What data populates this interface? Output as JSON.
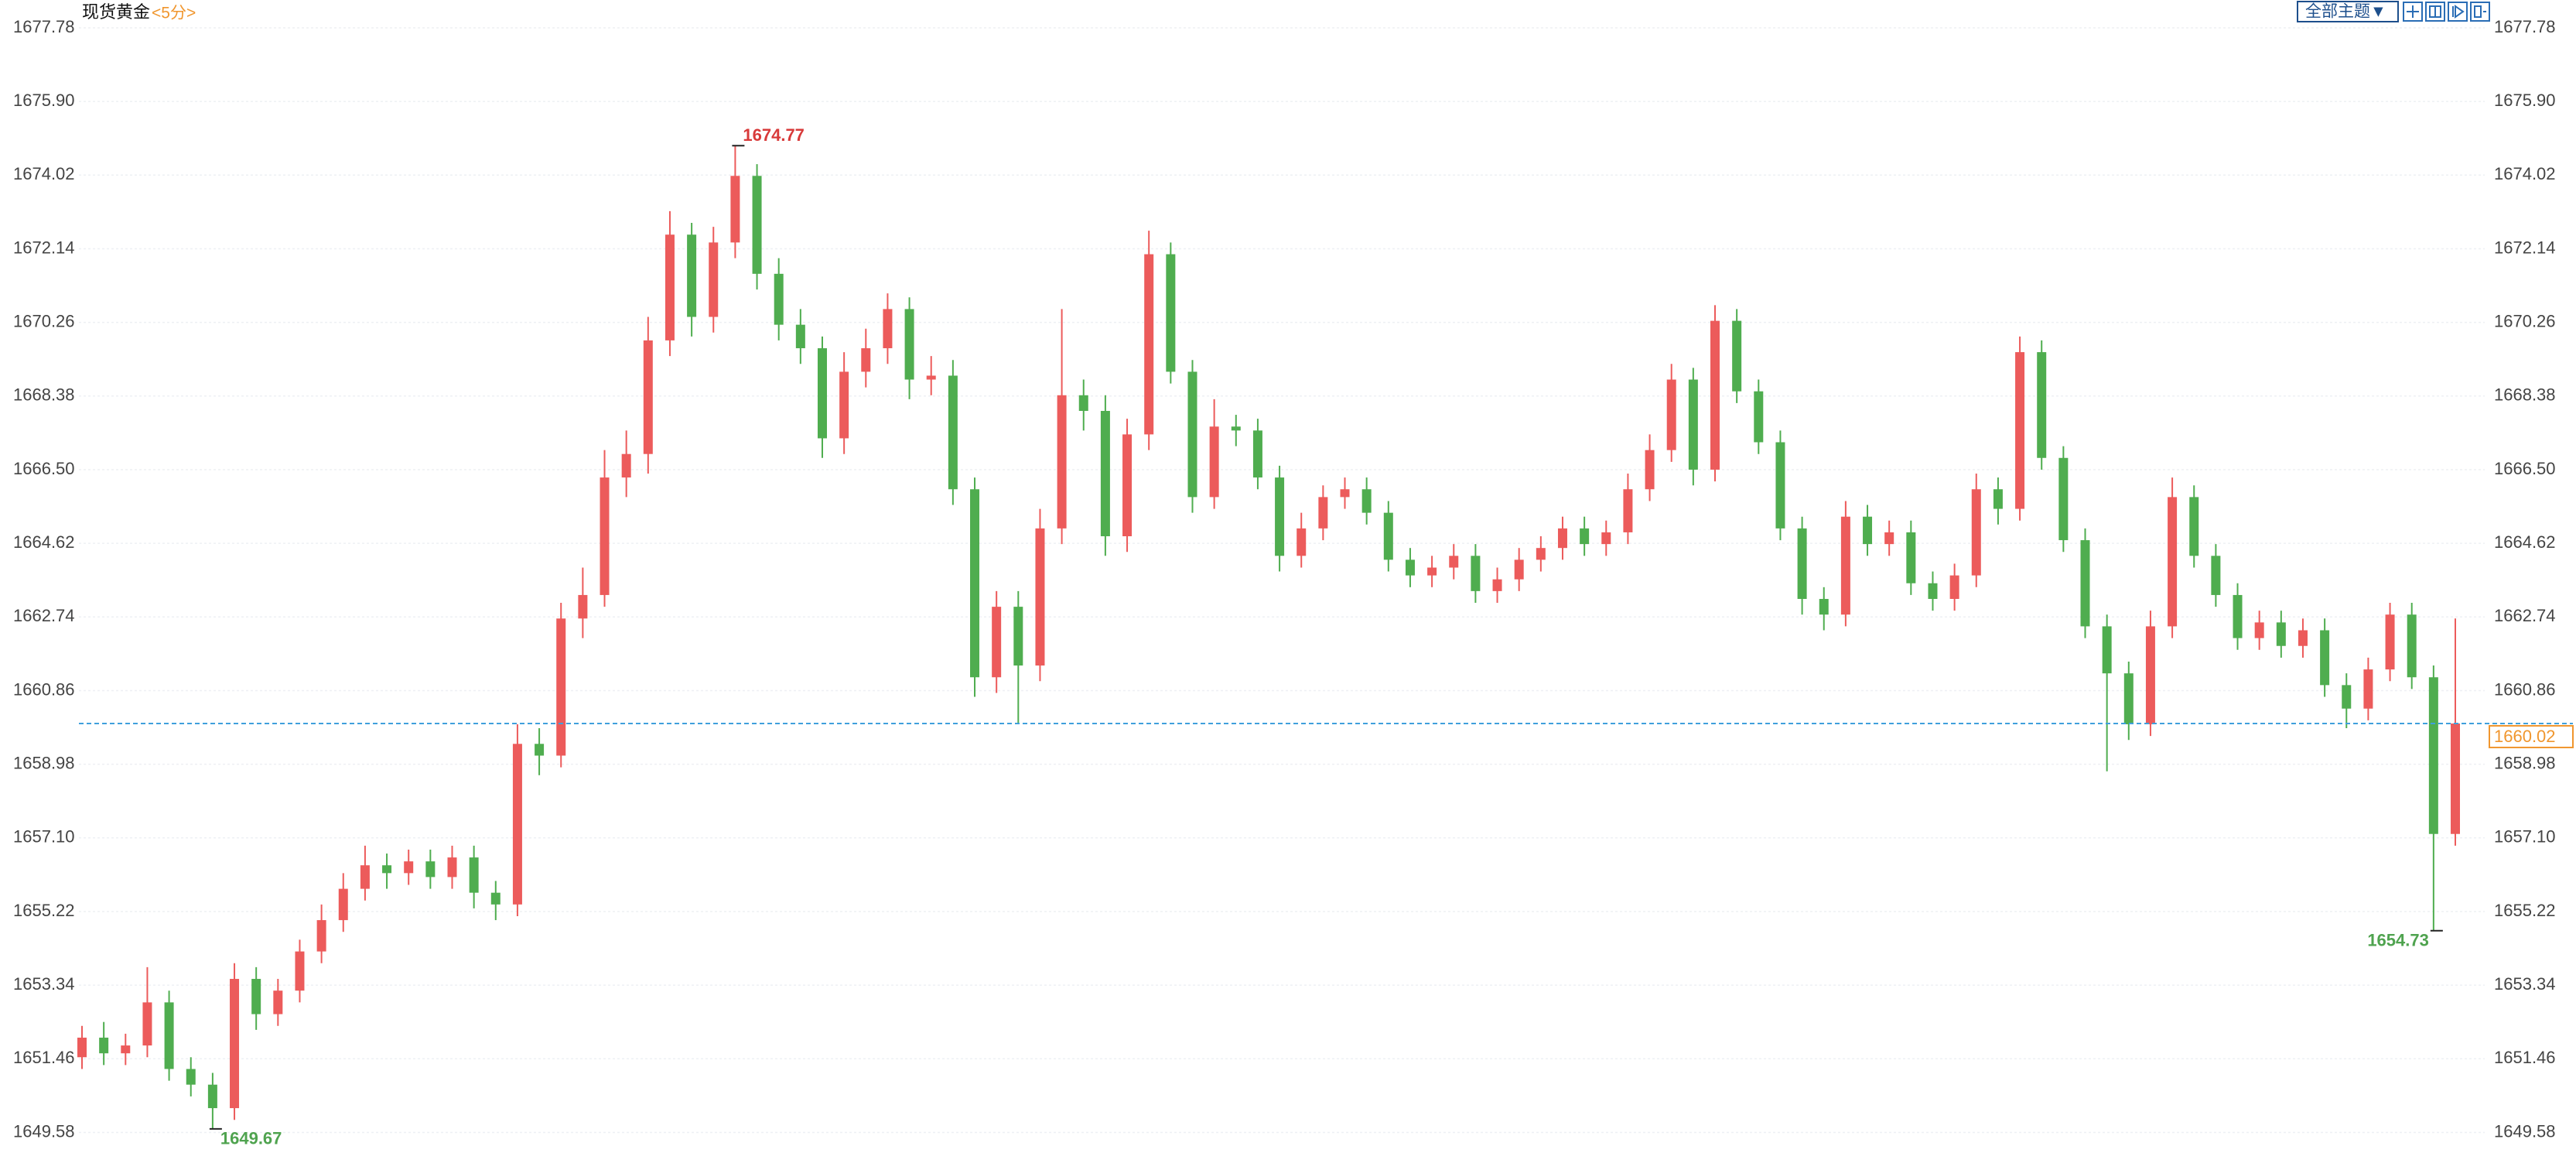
{
  "chart_data": {
    "type": "candlestick",
    "title": "现货黄金",
    "subtitle": "<5分>",
    "open": [
      1651.5,
      1652.0,
      1651.6,
      1651.8,
      1652.9,
      1651.2,
      1650.8,
      1650.2,
      1653.5,
      1652.6,
      1653.2,
      1654.2,
      1655.0,
      1655.8,
      1656.4,
      1656.2,
      1656.5,
      1656.1,
      1656.6,
      1655.7,
      1655.4,
      1659.5,
      1659.2,
      1662.7,
      1663.3,
      1666.3,
      1666.9,
      1669.8,
      1672.5,
      1670.4,
      1672.3,
      1674.0,
      1671.5,
      1670.2,
      1669.6,
      1667.3,
      1669.0,
      1669.6,
      1670.6,
      1668.8,
      1668.9,
      1666.0,
      1661.2,
      1663.0,
      1661.5,
      1665.0,
      1668.4,
      1668.0,
      1664.8,
      1667.4,
      1672.0,
      1669.0,
      1665.8,
      1667.6,
      1667.5,
      1666.3,
      1664.3,
      1665.0,
      1665.8,
      1666.0,
      1665.4,
      1664.2,
      1663.8,
      1664.0,
      1664.3,
      1663.4,
      1663.7,
      1664.2,
      1664.5,
      1665.0,
      1664.6,
      1664.9,
      1666.0,
      1667.0,
      1668.8,
      1666.5,
      1670.3,
      1668.5,
      1667.2,
      1665.0,
      1663.2,
      1662.8,
      1665.3,
      1664.6,
      1664.9,
      1663.6,
      1663.2,
      1663.8,
      1666.0,
      1665.5,
      1669.5,
      1666.8,
      1664.7,
      1662.5,
      1661.3,
      1660.0,
      1662.5,
      1665.8,
      1664.3,
      1663.3,
      1662.2,
      1662.6,
      1662.0,
      1662.4,
      1661.0,
      1660.4,
      1661.4,
      1662.8,
      1661.2,
      1657.2
    ],
    "high": [
      1652.3,
      1652.4,
      1652.1,
      1653.8,
      1653.2,
      1651.5,
      1651.1,
      1653.9,
      1653.8,
      1653.5,
      1654.5,
      1655.4,
      1656.2,
      1656.9,
      1656.7,
      1656.8,
      1656.8,
      1656.9,
      1656.9,
      1656.0,
      1660.0,
      1659.9,
      1663.1,
      1664.0,
      1667.0,
      1667.5,
      1670.4,
      1673.1,
      1672.8,
      1672.7,
      1674.77,
      1674.3,
      1671.9,
      1670.6,
      1669.9,
      1669.5,
      1670.1,
      1671.0,
      1670.9,
      1669.4,
      1669.3,
      1666.3,
      1663.4,
      1663.4,
      1665.5,
      1670.6,
      1668.8,
      1668.4,
      1667.8,
      1672.6,
      1672.3,
      1669.3,
      1668.3,
      1667.9,
      1667.8,
      1666.6,
      1665.4,
      1666.1,
      1666.3,
      1666.3,
      1665.7,
      1664.5,
      1664.3,
      1664.6,
      1664.6,
      1664.0,
      1664.5,
      1664.8,
      1665.3,
      1665.3,
      1665.2,
      1666.4,
      1667.4,
      1669.2,
      1669.1,
      1670.7,
      1670.6,
      1668.8,
      1667.5,
      1665.3,
      1663.5,
      1665.7,
      1665.6,
      1665.2,
      1665.2,
      1663.9,
      1664.1,
      1666.4,
      1666.3,
      1669.9,
      1669.8,
      1667.1,
      1665.0,
      1662.8,
      1661.6,
      1662.9,
      1666.3,
      1666.1,
      1664.6,
      1663.6,
      1662.9,
      1662.9,
      1662.7,
      1662.7,
      1661.3,
      1661.7,
      1663.1,
      1663.1,
      1661.5,
      1662.7
    ],
    "low": [
      1651.2,
      1651.3,
      1651.3,
      1651.5,
      1650.9,
      1650.5,
      1649.67,
      1649.9,
      1652.2,
      1652.3,
      1652.9,
      1653.9,
      1654.7,
      1655.5,
      1655.8,
      1655.9,
      1655.8,
      1655.8,
      1655.3,
      1655.0,
      1655.1,
      1658.7,
      1658.9,
      1662.2,
      1663.0,
      1665.8,
      1666.4,
      1669.4,
      1669.9,
      1670.0,
      1671.9,
      1671.1,
      1669.8,
      1669.2,
      1666.8,
      1666.9,
      1668.6,
      1669.2,
      1668.3,
      1668.4,
      1665.6,
      1660.7,
      1660.8,
      1660.0,
      1661.1,
      1664.6,
      1667.5,
      1664.3,
      1664.4,
      1667.0,
      1668.7,
      1665.4,
      1665.5,
      1667.1,
      1666.0,
      1663.9,
      1664.0,
      1664.7,
      1665.5,
      1665.1,
      1663.9,
      1663.5,
      1663.5,
      1663.7,
      1663.1,
      1663.1,
      1663.4,
      1663.9,
      1664.2,
      1664.3,
      1664.3,
      1664.6,
      1665.7,
      1666.7,
      1666.1,
      1666.2,
      1668.2,
      1666.9,
      1664.7,
      1662.8,
      1662.4,
      1662.5,
      1664.3,
      1664.3,
      1663.3,
      1662.9,
      1662.9,
      1663.5,
      1665.1,
      1665.2,
      1666.5,
      1664.4,
      1662.2,
      1658.8,
      1659.6,
      1659.7,
      1662.2,
      1664.0,
      1663.0,
      1661.9,
      1661.9,
      1661.7,
      1661.7,
      1660.7,
      1659.9,
      1660.1,
      1661.1,
      1660.9,
      1654.73,
      1656.9
    ],
    "close": [
      1652.0,
      1651.6,
      1651.8,
      1652.9,
      1651.2,
      1650.8,
      1650.2,
      1653.5,
      1652.6,
      1653.2,
      1654.2,
      1655.0,
      1655.8,
      1656.4,
      1656.2,
      1656.5,
      1656.1,
      1656.6,
      1655.7,
      1655.4,
      1659.5,
      1659.2,
      1662.7,
      1663.3,
      1666.3,
      1666.9,
      1669.8,
      1672.5,
      1670.4,
      1672.3,
      1674.0,
      1671.5,
      1670.2,
      1669.6,
      1667.3,
      1669.0,
      1669.6,
      1670.6,
      1668.8,
      1668.9,
      1666.0,
      1661.2,
      1663.0,
      1661.5,
      1665.0,
      1668.4,
      1668.0,
      1664.8,
      1667.4,
      1672.0,
      1669.0,
      1665.8,
      1667.6,
      1667.5,
      1666.3,
      1664.3,
      1665.0,
      1665.8,
      1666.0,
      1665.4,
      1664.2,
      1663.8,
      1664.0,
      1664.3,
      1663.4,
      1663.7,
      1664.2,
      1664.5,
      1665.0,
      1664.6,
      1664.9,
      1666.0,
      1667.0,
      1668.8,
      1666.5,
      1670.3,
      1668.5,
      1667.2,
      1665.0,
      1663.2,
      1662.8,
      1665.3,
      1664.6,
      1664.9,
      1663.6,
      1663.2,
      1663.8,
      1666.0,
      1665.5,
      1669.5,
      1666.8,
      1664.7,
      1662.5,
      1661.3,
      1660.0,
      1662.5,
      1665.8,
      1664.3,
      1663.3,
      1662.2,
      1662.6,
      1662.0,
      1662.4,
      1661.0,
      1660.4,
      1661.4,
      1662.8,
      1661.2,
      1657.2,
      1660.02
    ],
    "up_color": "#ec5b5b",
    "down_color": "#4fad4f",
    "ylim": [
      1648.7,
      1678.49
    ],
    "yticks": [
      1677.78,
      {
        "value": 1675.9,
        "label": "1675.90"
      },
      1674.02,
      1672.14,
      1670.26,
      1668.38,
      {
        "value": 1666.5,
        "label": "1666.50"
      },
      1664.62,
      1662.74,
      1660.86,
      1658.98,
      {
        "value": 1657.1,
        "label": "1657.10"
      },
      1655.22,
      1653.34,
      1651.46,
      1649.58
    ],
    "grid": true,
    "last_price": 1660.02,
    "last_price_color": "#f0962e",
    "last_line_color": "#3fa0dc",
    "annotations": [
      1674.77,
      1649.67,
      1654.73
    ]
  },
  "toolbar": {
    "theme": "全部主题▼"
  }
}
